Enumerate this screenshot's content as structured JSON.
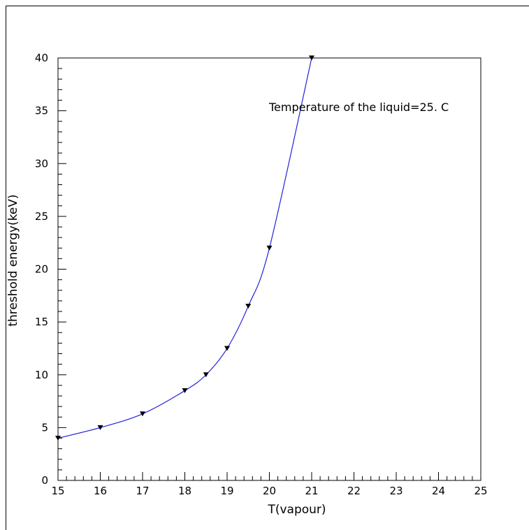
{
  "chart_data": {
    "type": "line",
    "title": "",
    "xlabel": "T(vapour)",
    "ylabel": "threshold energy(keV)",
    "xlim": [
      15,
      25
    ],
    "ylim": [
      0,
      40
    ],
    "x_ticks": [
      15,
      16,
      17,
      18,
      19,
      20,
      21,
      22,
      23,
      24,
      25
    ],
    "y_ticks": [
      0,
      5,
      10,
      15,
      20,
      25,
      30,
      35,
      40
    ],
    "x_minor_step": 0.2,
    "y_minor_step": 1,
    "grid": false,
    "annotation": "Temperature of the liquid=25. C",
    "colors": {
      "line": "#2222dd",
      "markers": "#000000",
      "axes": "#000000"
    },
    "series": [
      {
        "marker": "down-triangle",
        "points": [
          {
            "x": 15,
            "y": 4.0
          },
          {
            "x": 16,
            "y": 5.0
          },
          {
            "x": 17,
            "y": 6.3
          },
          {
            "x": 18,
            "y": 8.5
          },
          {
            "x": 18.5,
            "y": 10.0
          },
          {
            "x": 19,
            "y": 12.5
          },
          {
            "x": 19.5,
            "y": 16.5
          },
          {
            "x": 20,
            "y": 22.0
          },
          {
            "x": 21,
            "y": 40.0
          }
        ]
      }
    ]
  }
}
